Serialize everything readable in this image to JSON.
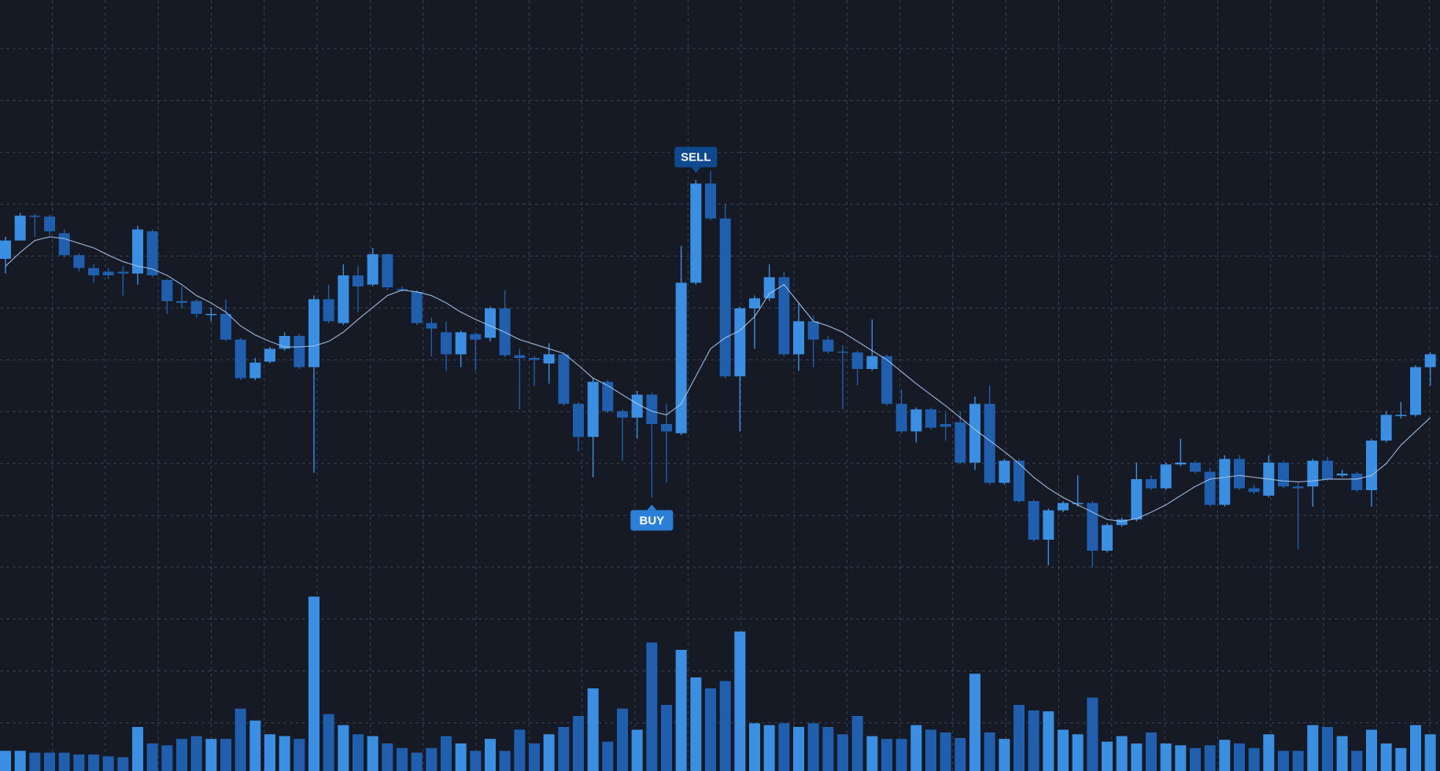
{
  "chart_data": {
    "type": "candlestick",
    "background": "#161a25",
    "grid": true,
    "grid_color": "#3a4152",
    "up_color": "#3a8fe3",
    "down_color": "#1f5fae",
    "ma_color": "#a9c8ec",
    "ylim": [
      16,
      100
    ],
    "y2lim": [
      0,
      100
    ],
    "open": [
      71.8,
      73.8,
      76.5,
      76.4,
      74.6,
      72.2,
      70.8,
      70.4,
      70.4,
      70.2,
      74.8,
      69.5,
      67.2,
      67.2,
      65.8,
      65.8,
      63.0,
      58.8,
      60.6,
      62.0,
      63.4,
      60.0,
      67.4,
      64.8,
      70.0,
      69.0,
      72.3,
      68.5,
      68.2,
      64.8,
      63.8,
      61.4,
      63.6,
      63.2,
      66.4,
      61.3,
      61.0,
      60.4,
      61.4,
      56.0,
      52.4,
      58.4,
      55.2,
      54.5,
      57.0,
      53.8,
      52.8,
      69.2,
      80.0,
      76.2,
      59.0,
      66.4,
      67.5,
      69.8,
      61.4,
      65.0,
      63.0,
      61.7,
      61.6,
      59.8,
      61.2,
      56.0,
      53.0,
      55.4,
      53.8,
      54.0,
      49.6,
      56.0,
      47.4,
      49.8,
      45.4,
      41.2,
      44.4,
      45.2,
      45.2,
      40.0,
      42.8,
      43.4,
      47.8,
      46.8,
      49.4,
      49.6,
      48.6,
      45.0,
      50.0,
      46.8,
      46.0,
      49.6,
      47.0,
      47.0,
      49.8,
      48.2,
      48.4,
      46.6,
      52.0,
      54.8,
      54.8,
      60.0
    ],
    "high": [
      74.2,
      76.8,
      76.7,
      76.6,
      75.0,
      72.4,
      71.2,
      70.8,
      71.0,
      75.4,
      75.0,
      69.6,
      68.8,
      67.4,
      66.5,
      67.4,
      63.2,
      61.0,
      62.2,
      63.8,
      63.6,
      67.8,
      69.0,
      71.2,
      71.0,
      73.0,
      72.4,
      68.8,
      68.4,
      65.4,
      65.0,
      64.0,
      63.8,
      66.6,
      68.4,
      62.0,
      61.2,
      62.6,
      61.6,
      56.2,
      58.8,
      58.6,
      55.4,
      57.4,
      57.2,
      56.0,
      73.2,
      80.4,
      81.4,
      77.8,
      66.6,
      67.8,
      71.2,
      70.4,
      67.0,
      65.6,
      63.4,
      62.4,
      61.8,
      65.2,
      61.4,
      57.6,
      55.6,
      55.6,
      55.0,
      55.2,
      56.8,
      58.0,
      50.0,
      50.0,
      45.6,
      44.6,
      45.4,
      48.2,
      45.4,
      43.0,
      43.6,
      49.6,
      48.2,
      49.6,
      52.2,
      49.8,
      49.0,
      50.4,
      50.4,
      47.2,
      50.4,
      49.8,
      47.4,
      50.0,
      50.2,
      48.8,
      48.6,
      52.2,
      55.2,
      56.2,
      60.2,
      61.6
    ],
    "low": [
      70.2,
      73.8,
      74.2,
      74.4,
      72.0,
      70.4,
      69.2,
      69.6,
      67.8,
      69.0,
      69.8,
      65.8,
      66.4,
      65.4,
      65.0,
      62.8,
      58.6,
      58.6,
      60.4,
      61.8,
      59.8,
      48.5,
      64.8,
      64.6,
      66.0,
      68.8,
      68.4,
      68.2,
      64.6,
      61.2,
      59.6,
      60.0,
      59.6,
      62.8,
      61.1,
      55.4,
      58.0,
      58.2,
      55.8,
      50.8,
      48.0,
      55.0,
      49.8,
      52.2,
      45.8,
      47.4,
      52.6,
      69.0,
      76.0,
      58.8,
      53.0,
      62.0,
      67.2,
      61.2,
      59.6,
      60.0,
      61.5,
      55.4,
      58.0,
      59.6,
      55.8,
      52.8,
      51.8,
      53.2,
      52.0,
      49.4,
      48.8,
      47.2,
      47.2,
      45.2,
      41.0,
      38.4,
      44.2,
      44.8,
      38.2,
      39.8,
      42.6,
      43.2,
      46.6,
      46.6,
      49.2,
      48.4,
      44.8,
      44.8,
      46.6,
      46.2,
      45.8,
      46.8,
      40.2,
      44.8,
      47.6,
      48.0,
      46.4,
      44.8,
      51.8,
      54.4,
      54.6,
      58.0
    ],
    "close": [
      73.8,
      76.5,
      76.4,
      74.8,
      72.2,
      70.8,
      70.0,
      70.0,
      70.2,
      75.0,
      70.0,
      67.2,
      67.0,
      65.8,
      65.8,
      63.0,
      58.8,
      60.5,
      62.0,
      63.4,
      60.0,
      67.4,
      65.0,
      70.0,
      68.8,
      72.3,
      68.7,
      68.4,
      64.8,
      64.2,
      61.4,
      63.8,
      63.0,
      66.4,
      61.3,
      61.0,
      60.8,
      61.4,
      56.0,
      52.4,
      58.4,
      55.2,
      54.5,
      57.0,
      53.8,
      53.0,
      69.2,
      80.0,
      76.2,
      59.0,
      66.4,
      67.5,
      69.8,
      61.4,
      65.0,
      63.0,
      61.7,
      61.6,
      59.8,
      61.2,
      56.0,
      53.0,
      55.4,
      53.4,
      53.5,
      49.6,
      56.0,
      47.4,
      49.8,
      45.4,
      41.2,
      44.4,
      45.2,
      45.2,
      40.0,
      42.8,
      43.4,
      47.8,
      46.8,
      49.4,
      49.6,
      48.6,
      45.0,
      50.0,
      46.8,
      46.4,
      49.6,
      47.0,
      46.8,
      49.8,
      47.8,
      48.4,
      46.6,
      52.0,
      54.8,
      54.8,
      60.0,
      61.4
    ],
    "ma": [
      71,
      72.5,
      73.8,
      74.2,
      74,
      73.5,
      73,
      72.2,
      71.5,
      71,
      70.7,
      70,
      69,
      67.8,
      67,
      66,
      64.5,
      63.5,
      62.8,
      62.2,
      62.2,
      62.3,
      62.8,
      63.8,
      65.2,
      66.5,
      67.8,
      68.4,
      68.2,
      67.8,
      67,
      66,
      65.2,
      64.5,
      63.8,
      63,
      62.5,
      62,
      61.5,
      60.2,
      58.8,
      58,
      57,
      56,
      55.2,
      54.8,
      56,
      59,
      62,
      63.2,
      64,
      65.5,
      68,
      69,
      67,
      65,
      64.5,
      63.8,
      62.8,
      61.8,
      60.8,
      59.5,
      58.2,
      57,
      55.8,
      54.5,
      53.2,
      52,
      50.8,
      49.5,
      48,
      46.8,
      45.8,
      45,
      44.2,
      43.4,
      43.2,
      43.5,
      44.2,
      45,
      46,
      47,
      47.8,
      48,
      48.2,
      48,
      47.8,
      47.6,
      47.5,
      47.6,
      47.8,
      47.8,
      47.8,
      48.2,
      49.5,
      51.5,
      53,
      54.5
    ],
    "volume": [
      11,
      11,
      10,
      10,
      10,
      9,
      9,
      8,
      7.5,
      24,
      15,
      14,
      17.5,
      19,
      17.5,
      17.5,
      34,
      27.5,
      20,
      19,
      17.5,
      95,
      31,
      25,
      20,
      19,
      15,
      12.5,
      10,
      12.5,
      19,
      15,
      11,
      17.5,
      11,
      22.5,
      15,
      20,
      24,
      30,
      45,
      16,
      34,
      22.5,
      70,
      36,
      66,
      51,
      45,
      49,
      76,
      26,
      25,
      26,
      24,
      26,
      24,
      20,
      30,
      19,
      17.5,
      17.5,
      25,
      22.5,
      21,
      18,
      53,
      21,
      17.5,
      36,
      33,
      32.5,
      22.5,
      20,
      40,
      16,
      19,
      15,
      21,
      15,
      14,
      12.5,
      14,
      17,
      15,
      12.5,
      20,
      11,
      11,
      25,
      24,
      19,
      11,
      22.5,
      15,
      12.5,
      25,
      20
    ],
    "annotations": [
      {
        "text": "SELL",
        "at": 47,
        "side": "above",
        "color": "#0f4a8f"
      },
      {
        "text": "BUY",
        "at": 44,
        "side": "below",
        "color": "#2c7fd6"
      }
    ]
  }
}
